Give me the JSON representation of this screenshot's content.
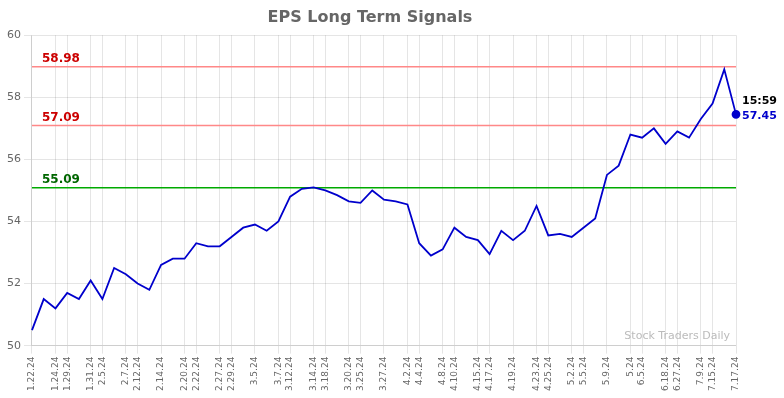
{
  "chart_data": {
    "type": "line",
    "title": "EPS Long Term Signals",
    "categories": [
      "1.22.24",
      null,
      "1.24.24",
      "1.29.24",
      null,
      "1.31.24",
      "2.5.24",
      null,
      "2.7.24",
      "2.12.24",
      null,
      "2.14.24",
      null,
      "2.20.24",
      "2.22.24",
      null,
      "2.27.24",
      "2.29.24",
      null,
      "3.5.24",
      null,
      "3.7.24",
      "3.12.24",
      null,
      "3.14.24",
      "3.18.24",
      null,
      "3.20.24",
      "3.25.24",
      null,
      "3.27.24",
      null,
      "4.2.24",
      "4.4.24",
      null,
      "4.8.24",
      "4.10.24",
      null,
      "4.15.24",
      "4.17.24",
      null,
      "4.19.24",
      null,
      "4.23.24",
      "4.25.24",
      null,
      "5.2.24",
      "5.5.24",
      null,
      "5.9.24",
      null,
      "5.24",
      "6.5.24",
      null,
      "6.18.24",
      "6.27.24",
      null,
      "7.9.24",
      "7.15.24",
      null,
      "7.17.24"
    ],
    "values": [
      50.5,
      51.5,
      51.2,
      51.7,
      51.5,
      52.1,
      51.5,
      52.5,
      52.3,
      52.0,
      51.8,
      52.6,
      52.8,
      52.8,
      53.3,
      53.2,
      53.2,
      53.5,
      53.8,
      53.9,
      53.7,
      54.0,
      54.8,
      55.05,
      55.1,
      55.0,
      54.85,
      54.65,
      54.6,
      55.0,
      54.7,
      54.65,
      54.55,
      53.3,
      52.9,
      53.1,
      53.8,
      53.5,
      53.4,
      52.95,
      53.7,
      53.4,
      53.7,
      54.5,
      53.55,
      53.6,
      53.5,
      53.8,
      54.1,
      55.5,
      55.8,
      56.8,
      56.7,
      57.0,
      56.5,
      56.9,
      56.7,
      57.3,
      57.8,
      58.9,
      57.45
    ],
    "color": "#0000cc",
    "ylim": [
      50,
      60
    ],
    "yticks": [
      50,
      52,
      54,
      56,
      58,
      60
    ],
    "grid": true,
    "reference_lines": [
      {
        "y": 55.09,
        "label": "55.09",
        "color": "#00aa00",
        "label_color": "#006600"
      },
      {
        "y": 58.98,
        "label": "58.98",
        "color": "#ff8888",
        "label_color": "#cc0000"
      },
      {
        "y": 57.09,
        "label": "57.09",
        "color": "#ff8888",
        "label_color": "#cc0000"
      }
    ],
    "last_point_labels": [
      "15:59",
      "57.45"
    ],
    "watermark": "Stock Traders Daily"
  }
}
